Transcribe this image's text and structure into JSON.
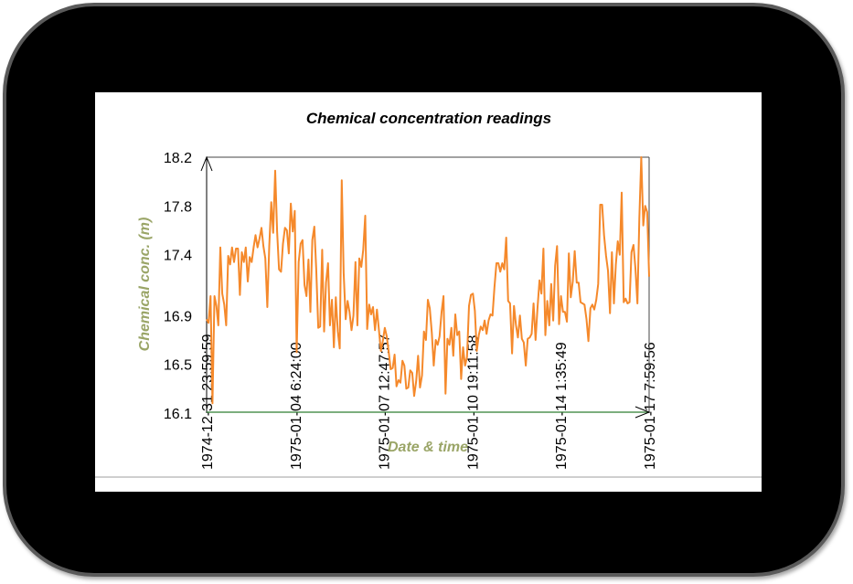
{
  "colors": {
    "device_frame": "#000000",
    "device_border": "#5a5a5a",
    "screen_background": "#ffffff",
    "axis_title": "#9aa567",
    "series_line": "#f5892b",
    "x_axis_line": "#2e7d32",
    "y_axis_line": "#000000"
  },
  "chart_data": {
    "type": "line",
    "title": "Chemical concentration readings",
    "xlabel": "Date & time",
    "ylabel": "Chemical conc. (m)",
    "ylim": [
      16.1,
      18.2
    ],
    "xlim": [
      "1974-12-31 23:59:59",
      "1975-01-17 7:59:56"
    ],
    "y_ticks": [
      "16.1",
      "16.5",
      "16.9",
      "17.4",
      "17.8",
      "18.2"
    ],
    "x_ticks": [
      "1974-12-31 23:59:59",
      "1975-01-04 6:24:00",
      "1975-01-07 12:47:57",
      "1975-01-10 19:11:58",
      "1975-01-14 1:35:49",
      "1975-01-17 7:59:56"
    ],
    "grid": false,
    "legend": "none",
    "series": [
      {
        "x_start": "1974-12-31 23:59:59",
        "x_end": "1975-01-17 7:59:56",
        "values": [
          16.87,
          16.84,
          17.06,
          16.18,
          17.06,
          16.98,
          16.82,
          17.46,
          17.08,
          16.99,
          16.82,
          17.39,
          17.32,
          17.46,
          17.34,
          17.45,
          17.45,
          17.07,
          17.42,
          17.34,
          17.46,
          17.18,
          17.38,
          17.34,
          17.46,
          17.56,
          17.46,
          17.53,
          17.62,
          17.47,
          17.37,
          16.97,
          17.47,
          17.83,
          17.58,
          18.09,
          17.59,
          17.28,
          17.26,
          17.49,
          17.62,
          17.6,
          17.41,
          17.82,
          17.59,
          17.76,
          16.6,
          17.34,
          17.49,
          17.52,
          17.15,
          17.06,
          17.36,
          16.93,
          17.52,
          17.63,
          17.28,
          16.8,
          16.81,
          17.44,
          16.77,
          17.17,
          17.33,
          16.82,
          17.03,
          16.64,
          17.05,
          16.77,
          16.63,
          18.01,
          17.25,
          16.87,
          17.02,
          16.93,
          16.78,
          16.9,
          17.34,
          16.82,
          17.37,
          17.3,
          17.44,
          17.72,
          16.79,
          16.99,
          16.91,
          16.97,
          16.78,
          16.95,
          16.78,
          16.61,
          16.69,
          16.8,
          16.73,
          16.6,
          16.46,
          16.47,
          16.58,
          16.32,
          16.37,
          16.35,
          16.53,
          16.49,
          16.3,
          16.31,
          16.45,
          16.43,
          16.24,
          16.36,
          16.57,
          16.31,
          16.41,
          16.77,
          16.7,
          17.03,
          16.96,
          16.76,
          16.49,
          16.7,
          16.66,
          16.73,
          16.93,
          17.06,
          16.26,
          16.71,
          16.66,
          16.8,
          16.57,
          16.91,
          16.74,
          16.77,
          16.38,
          16.64,
          16.49,
          16.56,
          16.98,
          17.07,
          17.08,
          16.94,
          16.61,
          16.74,
          16.81,
          16.78,
          16.86,
          16.75,
          16.86,
          16.91,
          16.9,
          17.13,
          17.33,
          17.33,
          17.26,
          17.33,
          17.28,
          17.54,
          17.02,
          17.0,
          16.59,
          16.98,
          16.82,
          16.72,
          16.9,
          16.71,
          16.68,
          16.49,
          16.71,
          16.72,
          16.75,
          17.0,
          16.7,
          16.96,
          17.19,
          17.08,
          17.45,
          16.74,
          17.02,
          16.82,
          17.16,
          16.86,
          17.31,
          17.47,
          16.83,
          17.06,
          16.93,
          16.93,
          16.85,
          17.41,
          17.05,
          17.18,
          17.43,
          17.17,
          17.17,
          17.01,
          17.0,
          16.99,
          16.87,
          16.69,
          16.96,
          16.99,
          16.95,
          17.03,
          17.16,
          17.81,
          17.81,
          17.56,
          17.39,
          17.27,
          16.92,
          17.42,
          17.0,
          17.32,
          17.51,
          17.4,
          17.91,
          17.01,
          17.04,
          17.0,
          17.01,
          17.42,
          17.48,
          17.29,
          17.0,
          17.7,
          18.2,
          17.64,
          17.8,
          17.75,
          17.22
        ]
      }
    ]
  }
}
